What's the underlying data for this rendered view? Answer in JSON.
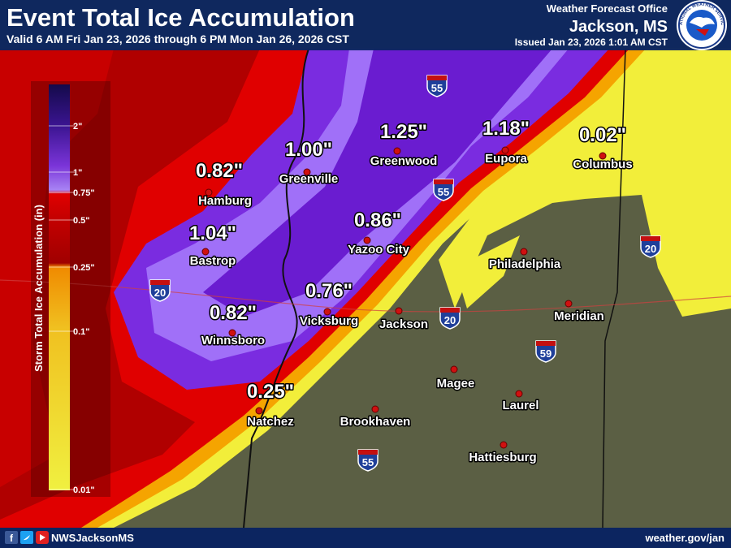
{
  "header": {
    "title": "Event Total Ice Accumulation",
    "subtitle": "Valid 6 AM Fri Jan 23, 2026 through 6 PM Mon Jan 26, 2026 CST",
    "office": "Weather Forecast Office",
    "location": "Jackson, MS",
    "issued": "Issued Jan 23, 2026 1:01 AM CST",
    "logo_text": "NATIONAL WEATHER SERVICE"
  },
  "legend": {
    "title": "Storm Total Ice Accumulation (in)",
    "labels": [
      "2\"",
      "1\"",
      "0.75\"",
      "0.5\"",
      "0.25\"",
      "0.1\"",
      "0.01\""
    ]
  },
  "cities": [
    {
      "name": "Hamburg",
      "amount": "0.82\""
    },
    {
      "name": "Greenville",
      "amount": "1.00\""
    },
    {
      "name": "Greenwood",
      "amount": "1.25\""
    },
    {
      "name": "Eupora",
      "amount": "1.18\""
    },
    {
      "name": "Columbus",
      "amount": "0.02\""
    },
    {
      "name": "Bastrop",
      "amount": "1.04\""
    },
    {
      "name": "Yazoo City",
      "amount": "0.86\""
    },
    {
      "name": "Vicksburg",
      "amount": "0.76\""
    },
    {
      "name": "Winnsboro",
      "amount": "0.82\""
    },
    {
      "name": "Natchez",
      "amount": "0.25\""
    }
  ],
  "other_cities": [
    "Jackson",
    "Philadelphia",
    "Meridian",
    "Magee",
    "Laurel",
    "Brookhaven",
    "Hattiesburg"
  ],
  "highways": [
    "55",
    "55",
    "55",
    "20",
    "20",
    "20",
    "59"
  ],
  "footer": {
    "handle": "NWSJacksonMS",
    "url": "weather.gov/jan"
  }
}
